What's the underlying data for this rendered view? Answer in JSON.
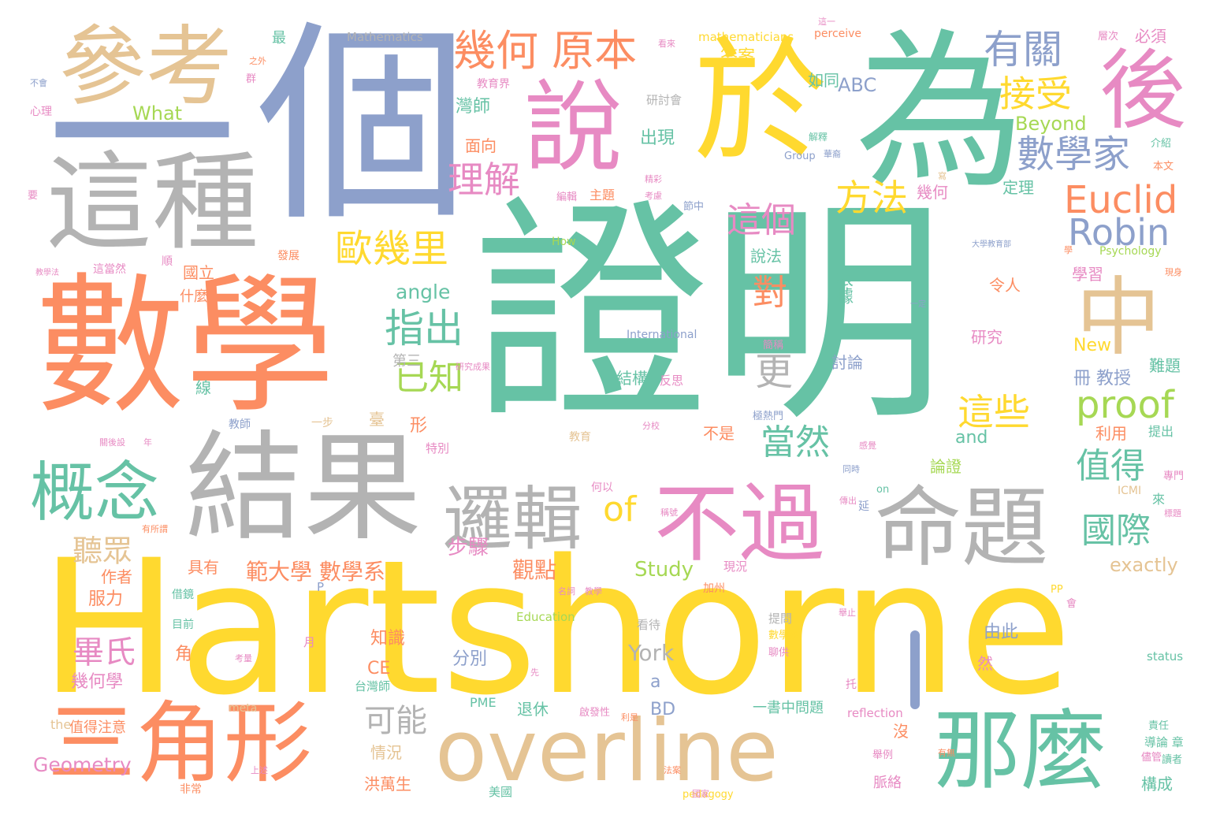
{
  "palette": {
    "green": "#66c2a5",
    "orange": "#fc8d62",
    "blue": "#8da0cb",
    "pink": "#e78ac3",
    "lime": "#a6d854",
    "yellow": "#ffd92f",
    "tan": "#e5c494",
    "gray": "#b3b3b3"
  },
  "words": [
    {
      "text": "證明",
      "color": "green"
    },
    {
      "text": "Hartshorne",
      "color": "yellow"
    },
    {
      "text": "數學",
      "color": "orange"
    },
    {
      "text": "個",
      "color": "blue"
    },
    {
      "text": "為",
      "color": "green"
    },
    {
      "text": "一",
      "color": "blue"
    },
    {
      "text": "結果",
      "color": "gray"
    },
    {
      "text": "這種",
      "color": "gray"
    },
    {
      "text": "於",
      "color": "yellow"
    },
    {
      "text": "說",
      "color": "pink"
    },
    {
      "text": "參考",
      "color": "tan"
    },
    {
      "text": "overline",
      "color": "tan"
    },
    {
      "text": "三角形",
      "color": "orange"
    },
    {
      "text": "那麼",
      "color": "green"
    },
    {
      "text": "命題",
      "color": "gray"
    },
    {
      "text": "不過",
      "color": "pink"
    },
    {
      "text": "後",
      "color": "pink"
    },
    {
      "text": "中",
      "color": "tan"
    },
    {
      "text": "邏輯",
      "color": "gray"
    },
    {
      "text": "概念",
      "color": "green"
    },
    {
      "text": "幾何 原本",
      "color": "orange"
    },
    {
      "text": "有關",
      "color": "blue"
    },
    {
      "text": "接受",
      "color": "yellow"
    },
    {
      "text": "數學家",
      "color": "blue"
    },
    {
      "text": "Euclid",
      "color": "orange"
    },
    {
      "text": "Robin",
      "color": "blue"
    },
    {
      "text": "proof",
      "color": "lime"
    },
    {
      "text": "歐幾里",
      "color": "yellow"
    },
    {
      "text": "指出",
      "color": "green"
    },
    {
      "text": "方法",
      "color": "yellow"
    },
    {
      "text": "這個",
      "color": "pink"
    },
    {
      "text": "理解",
      "color": "pink"
    },
    {
      "text": "已知",
      "color": "lime"
    },
    {
      "text": "這些",
      "color": "yellow"
    },
    {
      "text": "當然",
      "color": "green"
    },
    {
      "text": "值得",
      "color": "green"
    },
    {
      "text": "國際",
      "color": "green"
    },
    {
      "text": "of",
      "color": "yellow"
    },
    {
      "text": "更",
      "color": "gray"
    },
    {
      "text": "對",
      "color": "orange"
    },
    {
      "text": "可能",
      "color": "gray"
    },
    {
      "text": "畢氏",
      "color": "pink"
    },
    {
      "text": "聽眾",
      "color": "tan"
    },
    {
      "text": "範大學 數學系",
      "color": "orange"
    },
    {
      "text": "觀點",
      "color": "orange"
    },
    {
      "text": "步驟",
      "color": "pink"
    },
    {
      "text": "Study",
      "color": "lime"
    },
    {
      "text": "exactly",
      "color": "tan"
    },
    {
      "text": "Geometry",
      "color": "pink"
    },
    {
      "text": "York",
      "color": "gray"
    },
    {
      "text": "angle",
      "color": "green"
    },
    {
      "text": "Mathematics",
      "color": "gray"
    },
    {
      "text": "mathematicians",
      "color": "yellow"
    },
    {
      "text": "perceive",
      "color": "orange"
    },
    {
      "text": "What",
      "color": "lime"
    },
    {
      "text": "Beyond",
      "color": "lime"
    },
    {
      "text": "ABC",
      "color": "blue"
    },
    {
      "text": "How",
      "color": "lime"
    },
    {
      "text": "Psychology",
      "color": "lime"
    },
    {
      "text": "International",
      "color": "blue"
    },
    {
      "text": "New",
      "color": "yellow"
    },
    {
      "text": "and",
      "color": "green"
    },
    {
      "text": "Education",
      "color": "lime"
    },
    {
      "text": "status",
      "color": "green"
    },
    {
      "text": "reflection",
      "color": "pink"
    },
    {
      "text": "PME",
      "color": "green"
    },
    {
      "text": "CE",
      "color": "orange"
    },
    {
      "text": "BD",
      "color": "blue"
    },
    {
      "text": "the",
      "color": "tan"
    },
    {
      "text": "meta",
      "color": "tan"
    },
    {
      "text": "ICMI",
      "color": "tan"
    },
    {
      "text": "pedagogy",
      "color": "yellow"
    },
    {
      "text": "Group",
      "color": "blue"
    },
    {
      "text": "on",
      "color": "green"
    },
    {
      "text": "PP",
      "color": "yellow"
    },
    {
      "text": "P",
      "color": "blue"
    },
    {
      "text": "a",
      "color": "blue"
    },
    {
      "text": "答案",
      "color": "yellow"
    },
    {
      "text": "如同",
      "color": "green"
    },
    {
      "text": "必須",
      "color": "pink"
    },
    {
      "text": "層次",
      "color": "pink"
    },
    {
      "text": "教育界",
      "color": "pink"
    },
    {
      "text": "研討會",
      "color": "gray"
    },
    {
      "text": "灣師",
      "color": "green"
    },
    {
      "text": "面向",
      "color": "orange"
    },
    {
      "text": "出現",
      "color": "green"
    },
    {
      "text": "主題",
      "color": "orange"
    },
    {
      "text": "編輯",
      "color": "pink"
    },
    {
      "text": "節中",
      "color": "blue"
    },
    {
      "text": "幾何",
      "color": "pink"
    },
    {
      "text": "定理",
      "color": "green"
    },
    {
      "text": "說法",
      "color": "green"
    },
    {
      "text": "根據",
      "color": "green"
    },
    {
      "text": "令人",
      "color": "orange"
    },
    {
      "text": "學習",
      "color": "pink"
    },
    {
      "text": "研究",
      "color": "pink"
    },
    {
      "text": "討論",
      "color": "blue"
    },
    {
      "text": "結構",
      "color": "green"
    },
    {
      "text": "反思",
      "color": "pink"
    },
    {
      "text": "難題",
      "color": "green"
    },
    {
      "text": "冊 教授",
      "color": "blue"
    },
    {
      "text": "利用",
      "color": "orange"
    },
    {
      "text": "提出",
      "color": "green"
    },
    {
      "text": "論證",
      "color": "lime"
    },
    {
      "text": "不是",
      "color": "orange"
    },
    {
      "text": "第三",
      "color": "gray"
    },
    {
      "text": "形",
      "color": "orange"
    },
    {
      "text": "特別",
      "color": "pink"
    },
    {
      "text": "教育",
      "color": "tan"
    },
    {
      "text": "教師",
      "color": "blue"
    },
    {
      "text": "一步",
      "color": "tan"
    },
    {
      "text": "臺",
      "color": "tan"
    },
    {
      "text": "國立",
      "color": "orange"
    },
    {
      "text": "什麼",
      "color": "orange"
    },
    {
      "text": "發展",
      "color": "orange"
    },
    {
      "text": "線",
      "color": "green"
    },
    {
      "text": "具有",
      "color": "orange"
    },
    {
      "text": "作者",
      "color": "orange"
    },
    {
      "text": "服力",
      "color": "orange"
    },
    {
      "text": "借鏡",
      "color": "green"
    },
    {
      "text": "目前",
      "color": "green"
    },
    {
      "text": "角",
      "color": "orange"
    },
    {
      "text": "幾何學",
      "color": "pink"
    },
    {
      "text": "知識",
      "color": "orange"
    },
    {
      "text": "分別",
      "color": "blue"
    },
    {
      "text": "台灣師",
      "color": "green"
    },
    {
      "text": "退休",
      "color": "green"
    },
    {
      "text": "情況",
      "color": "tan"
    },
    {
      "text": "洪萬生",
      "color": "orange"
    },
    {
      "text": "美國",
      "color": "green"
    },
    {
      "text": "值得注意",
      "color": "orange"
    },
    {
      "text": "非常",
      "color": "orange"
    },
    {
      "text": "看待",
      "color": "gray"
    },
    {
      "text": "加州",
      "color": "orange"
    },
    {
      "text": "現況",
      "color": "pink"
    },
    {
      "text": "提問",
      "color": "gray"
    },
    {
      "text": "由此",
      "color": "blue"
    },
    {
      "text": "然",
      "color": "pink"
    },
    {
      "text": "一書中問題",
      "color": "green"
    },
    {
      "text": "脈絡",
      "color": "pink"
    },
    {
      "text": "構成",
      "color": "green"
    },
    {
      "text": "沒",
      "color": "orange"
    },
    {
      "text": "聊供",
      "color": "pink"
    },
    {
      "text": "啟發性",
      "color": "pink"
    },
    {
      "text": "月",
      "color": "pink"
    },
    {
      "text": "不會",
      "color": "blue"
    },
    {
      "text": "心理",
      "color": "pink"
    },
    {
      "text": "群",
      "color": "pink"
    },
    {
      "text": "之外",
      "color": "orange"
    },
    {
      "text": "最",
      "color": "green"
    },
    {
      "text": "看來",
      "color": "pink"
    },
    {
      "text": "介紹",
      "color": "green"
    },
    {
      "text": "本文",
      "color": "orange"
    },
    {
      "text": "順",
      "color": "pink"
    },
    {
      "text": "這當然",
      "color": "pink"
    },
    {
      "text": "教學法",
      "color": "pink"
    },
    {
      "text": "關後設",
      "color": "pink"
    },
    {
      "text": "年",
      "color": "pink"
    },
    {
      "text": "何以",
      "color": "pink"
    },
    {
      "text": "責任",
      "color": "green"
    },
    {
      "text": "專門",
      "color": "pink"
    },
    {
      "text": "來",
      "color": "green"
    },
    {
      "text": "導論 章",
      "color": "green"
    },
    {
      "text": "讀者",
      "color": "green"
    },
    {
      "text": "大學教育部",
      "color": "blue"
    },
    {
      "text": "學",
      "color": "orange"
    },
    {
      "text": "現身",
      "color": "orange"
    },
    {
      "text": "一定",
      "color": "blue"
    },
    {
      "text": "極熱門",
      "color": "blue"
    },
    {
      "text": "數學系",
      "color": "yellow"
    },
    {
      "text": "托",
      "color": "pink"
    },
    {
      "text": "解釋",
      "color": "green"
    },
    {
      "text": "華裔",
      "color": "blue"
    },
    {
      "text": "考慮",
      "color": "pink"
    },
    {
      "text": "精彩",
      "color": "pink"
    },
    {
      "text": "研究成果",
      "color": "pink"
    },
    {
      "text": "簡稱",
      "color": "pink"
    },
    {
      "text": "要",
      "color": "pink"
    },
    {
      "text": "寫",
      "color": "tan"
    },
    {
      "text": "分校",
      "color": "pink"
    },
    {
      "text": "同時",
      "color": "blue"
    },
    {
      "text": "延",
      "color": "blue"
    },
    {
      "text": "感覺",
      "color": "pink"
    },
    {
      "text": "舉例",
      "color": "pink"
    },
    {
      "text": "儘管",
      "color": "pink"
    },
    {
      "text": "舉止",
      "color": "pink"
    },
    {
      "text": "會",
      "color": "pink"
    },
    {
      "text": "名詞",
      "color": "pink"
    },
    {
      "text": "先",
      "color": "pink"
    },
    {
      "text": "考量",
      "color": "pink"
    },
    {
      "text": "利是",
      "color": "orange"
    },
    {
      "text": "法案",
      "color": "orange"
    },
    {
      "text": "國家",
      "color": "pink"
    },
    {
      "text": "上述",
      "color": "pink"
    },
    {
      "text": "教學",
      "color": "pink"
    },
    {
      "text": "有所謂",
      "color": "orange"
    },
    {
      "text": "稱號",
      "color": "pink"
    },
    {
      "text": "這一",
      "color": "pink"
    },
    {
      "text": "標題",
      "color": "pink"
    },
    {
      "text": "傳出",
      "color": "pink"
    },
    {
      "text": "有無",
      "color": "orange"
    },
    {
      "text": "看法",
      "color": "pink"
    }
  ]
}
